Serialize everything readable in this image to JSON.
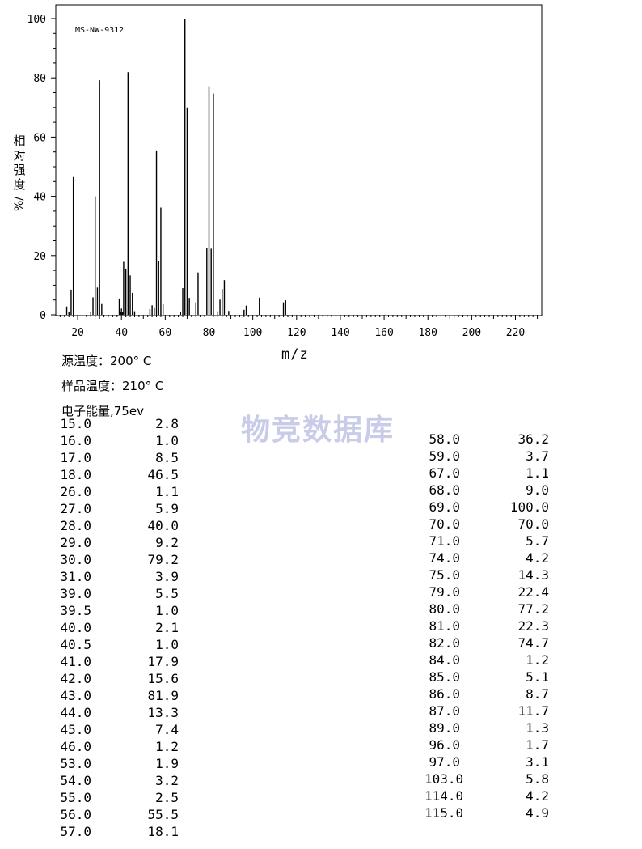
{
  "chart_data": {
    "type": "bar",
    "title": "MS-NW-9312",
    "xlabel": "m/z",
    "ylabel": "相对强度",
    "ylabel_unit": "%/",
    "xlim": [
      10,
      232
    ],
    "ylim": [
      0,
      100
    ],
    "x_ticks": [
      "20",
      "40",
      "60",
      "80",
      "100",
      "120",
      "140",
      "160",
      "180",
      "200",
      "220"
    ],
    "y_ticks": [
      "0",
      "20",
      "40",
      "60",
      "80",
      "100"
    ],
    "x": [
      15.0,
      16.0,
      17.0,
      18.0,
      26.0,
      27.0,
      28.0,
      29.0,
      30.0,
      31.0,
      39.0,
      39.5,
      40.0,
      40.5,
      41.0,
      42.0,
      43.0,
      44.0,
      45.0,
      46.0,
      53.0,
      54.0,
      55.0,
      56.0,
      57.0,
      58.0,
      59.0,
      67.0,
      68.0,
      69.0,
      70.0,
      71.0,
      74.0,
      75.0,
      79.0,
      80.0,
      81.0,
      82.0,
      84.0,
      85.0,
      86.0,
      87.0,
      89.0,
      96.0,
      97.0,
      103.0,
      114.0,
      115.0
    ],
    "values": [
      2.8,
      1.0,
      8.5,
      46.5,
      1.1,
      5.9,
      40.0,
      9.2,
      79.2,
      3.9,
      5.5,
      1.0,
      2.1,
      1.0,
      17.9,
      15.6,
      81.9,
      13.3,
      7.4,
      1.2,
      1.9,
      3.2,
      2.5,
      55.5,
      18.1,
      36.2,
      3.7,
      1.1,
      9.0,
      100.0,
      70.0,
      5.7,
      4.2,
      14.3,
      22.4,
      77.2,
      22.3,
      74.7,
      1.2,
      5.1,
      8.7,
      11.7,
      1.3,
      1.7,
      3.1,
      5.8,
      4.2,
      4.9
    ]
  },
  "info": {
    "source_temp": "源温度：200° C",
    "sample_temp": "样品温度：210° C",
    "electron_energy": "电子能量,75ev"
  },
  "watermark": "物竞数据库",
  "table_left": [
    [
      "15.0",
      "2.8"
    ],
    [
      "16.0",
      "1.0"
    ],
    [
      "17.0",
      "8.5"
    ],
    [
      "18.0",
      "46.5"
    ],
    [
      "26.0",
      "1.1"
    ],
    [
      "27.0",
      "5.9"
    ],
    [
      "28.0",
      "40.0"
    ],
    [
      "29.0",
      "9.2"
    ],
    [
      "30.0",
      "79.2"
    ],
    [
      "31.0",
      "3.9"
    ],
    [
      "39.0",
      "5.5"
    ],
    [
      "39.5",
      "1.0"
    ],
    [
      "40.0",
      "2.1"
    ],
    [
      "40.5",
      "1.0"
    ],
    [
      "41.0",
      "17.9"
    ],
    [
      "42.0",
      "15.6"
    ],
    [
      "43.0",
      "81.9"
    ],
    [
      "44.0",
      "13.3"
    ],
    [
      "45.0",
      "7.4"
    ],
    [
      "46.0",
      "1.2"
    ],
    [
      "53.0",
      "1.9"
    ],
    [
      "54.0",
      "3.2"
    ],
    [
      "55.0",
      "2.5"
    ],
    [
      "56.0",
      "55.5"
    ],
    [
      "57.0",
      "18.1"
    ]
  ],
  "table_right": [
    [
      "58.0",
      "36.2"
    ],
    [
      "59.0",
      "3.7"
    ],
    [
      "67.0",
      "1.1"
    ],
    [
      "68.0",
      "9.0"
    ],
    [
      "69.0",
      "100.0"
    ],
    [
      "70.0",
      "70.0"
    ],
    [
      "71.0",
      "5.7"
    ],
    [
      "74.0",
      "4.2"
    ],
    [
      "75.0",
      "14.3"
    ],
    [
      "79.0",
      "22.4"
    ],
    [
      "80.0",
      "77.2"
    ],
    [
      "81.0",
      "22.3"
    ],
    [
      "82.0",
      "74.7"
    ],
    [
      "84.0",
      "1.2"
    ],
    [
      "85.0",
      "5.1"
    ],
    [
      "86.0",
      "8.7"
    ],
    [
      "87.0",
      "11.7"
    ],
    [
      "89.0",
      "1.3"
    ],
    [
      "96.0",
      "1.7"
    ],
    [
      "97.0",
      "3.1"
    ],
    [
      "103.0",
      "5.8"
    ],
    [
      "114.0",
      "4.2"
    ],
    [
      "115.0",
      "4.9"
    ]
  ]
}
